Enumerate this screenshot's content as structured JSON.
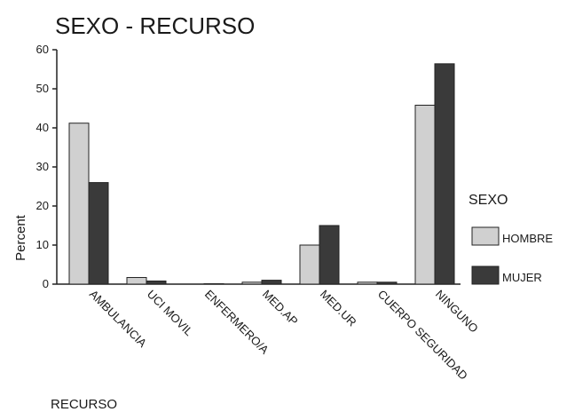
{
  "chart_data": {
    "type": "bar",
    "title": "SEXO - RECURSO",
    "xlabel": "RECURSO",
    "ylabel": "Percent",
    "ylim": [
      0,
      60
    ],
    "yticks": [
      0,
      10,
      20,
      30,
      40,
      50,
      60
    ],
    "grid": false,
    "legend_placement": "right",
    "legend_title": "SEXO",
    "categories": [
      "AMBULANCIA",
      "UCI MOVIL",
      "ENFERMERO/A",
      "MED.AP",
      "MED.UR",
      "CUERPO SEGURIDAD",
      "NINGUNO"
    ],
    "series": [
      {
        "name": "HOMBRE",
        "color": "#d0d0d0",
        "values": [
          41.2,
          1.7,
          0.0,
          0.5,
          10.0,
          0.5,
          45.8
        ]
      },
      {
        "name": "MUJER",
        "color": "#3a3a3a",
        "values": [
          26.0,
          0.8,
          0.1,
          1.0,
          15.0,
          0.5,
          56.4
        ]
      }
    ]
  }
}
